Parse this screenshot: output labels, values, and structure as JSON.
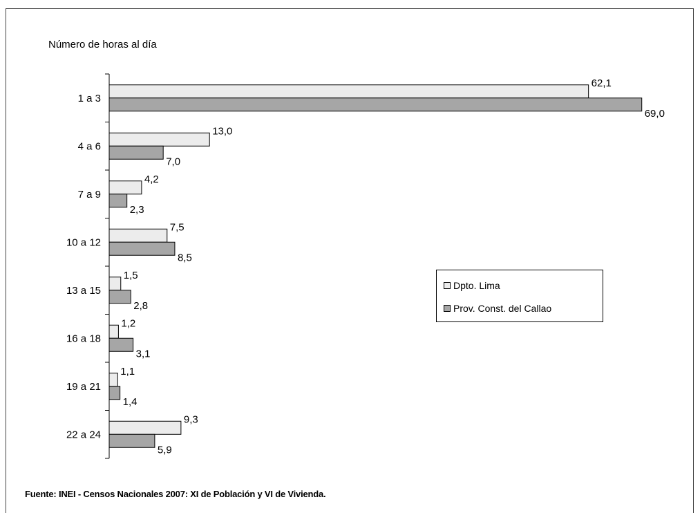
{
  "chart_data": {
    "type": "bar",
    "orientation": "horizontal",
    "ylabel": "Número de horas al día",
    "categories": [
      "1 a 3",
      "4 a 6",
      "7 a 9",
      "10 a 12",
      "13 a 15",
      "16 a 18",
      "19 a 21",
      "22 a 24"
    ],
    "series": [
      {
        "name": "Dpto. Lima",
        "color": "#ececec",
        "values": [
          62.1,
          13.0,
          4.2,
          7.5,
          1.5,
          1.2,
          1.1,
          9.3
        ],
        "labels": [
          "62,1",
          "13,0",
          "4,2",
          "7,5",
          "1,5",
          "1,2",
          "1,1",
          "9,3"
        ]
      },
      {
        "name": "Prov. Const. del Callao",
        "color": "#a6a6a6",
        "values": [
          69.0,
          7.0,
          2.3,
          8.5,
          2.8,
          3.1,
          1.4,
          5.9
        ],
        "labels": [
          "69,0",
          "7,0",
          "2,3",
          "8,5",
          "2,8",
          "3,1",
          "1,4",
          "5,9"
        ]
      }
    ],
    "xlim": [
      0,
      70
    ],
    "grid": false,
    "legend_position": "right"
  },
  "source": "Fuente: INEI - Censos Nacionales 2007: XI de Población y VI de Vivienda."
}
